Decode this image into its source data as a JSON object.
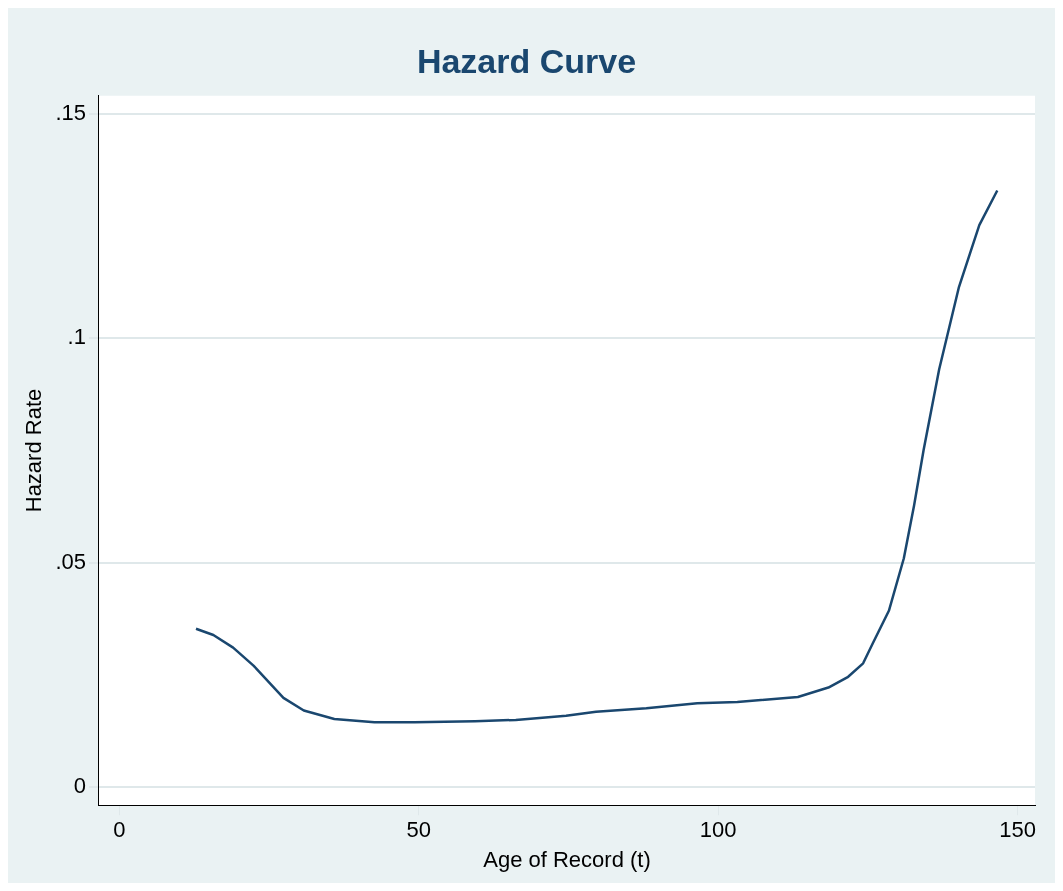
{
  "chart_data": {
    "type": "line",
    "title": "Hazard Curve",
    "xlabel": "Age of Record (t)",
    "ylabel": "Hazard Rate",
    "x": [
      12.8,
      15.7,
      19,
      22.4,
      27.4,
      30.8,
      35.9,
      42.6,
      49.3,
      59.4,
      66.2,
      74.6,
      79.6,
      88,
      96.5,
      103.2,
      113.3,
      118.4,
      121.7,
      124.2,
      125.9,
      128.5,
      131,
      132.7,
      134.3,
      136.9,
      140.2,
      143.6,
      146.6
    ],
    "series": [
      {
        "color": "#1a476f",
        "values": [
          0.0353,
          0.0339,
          0.0311,
          0.0271,
          0.0199,
          0.0171,
          0.0152,
          0.0145,
          0.0145,
          0.0147,
          0.015,
          0.0159,
          0.0168,
          0.0176,
          0.0187,
          0.019,
          0.0201,
          0.0222,
          0.0246,
          0.0276,
          0.0323,
          0.0393,
          0.051,
          0.0627,
          0.0751,
          0.0931,
          0.1114,
          0.1252,
          0.1329
        ]
      }
    ],
    "xlim": [
      -3.4,
      152.9
    ],
    "ylim": [
      -0.004,
      0.154
    ],
    "xticks": [
      0,
      50,
      100,
      150
    ],
    "yticks": [
      {
        "value": 0,
        "label": "0"
      },
      {
        "value": 0.05,
        "label": ".05"
      },
      {
        "value": 0.1,
        "label": ".1"
      },
      {
        "value": 0.15,
        "label": ".15"
      }
    ],
    "grid": "y",
    "legend": false,
    "marker": "none",
    "line_style": "solid"
  }
}
